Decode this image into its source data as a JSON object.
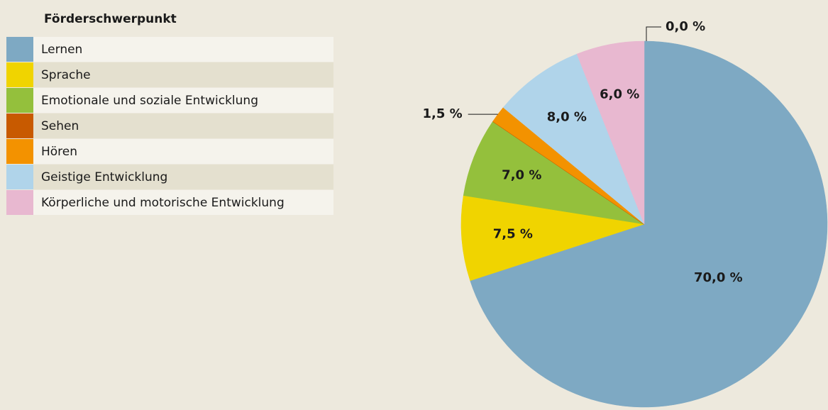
{
  "chart_data": {
    "type": "pie",
    "legend_title": "Förderschwerpunkt",
    "categories": [
      "Lernen",
      "Sprache",
      "Emotionale und soziale Entwicklung",
      "Sehen",
      "Hören",
      "Geistige Entwicklung",
      "Körperliche und motorische Entwicklung"
    ],
    "values": [
      70.0,
      7.5,
      7.0,
      0.0,
      1.5,
      8.0,
      6.0
    ],
    "value_labels": [
      "70,0 %",
      "7,5 %",
      "7,0 %",
      "0,0 %",
      "1,5 %",
      "8,0 %",
      "6,0 %"
    ],
    "colors": [
      "#7ea9c3",
      "#f0d400",
      "#94c03c",
      "#c85a00",
      "#f39200",
      "#b0d4ea",
      "#e8b8d0"
    ],
    "legend": "top-left"
  }
}
